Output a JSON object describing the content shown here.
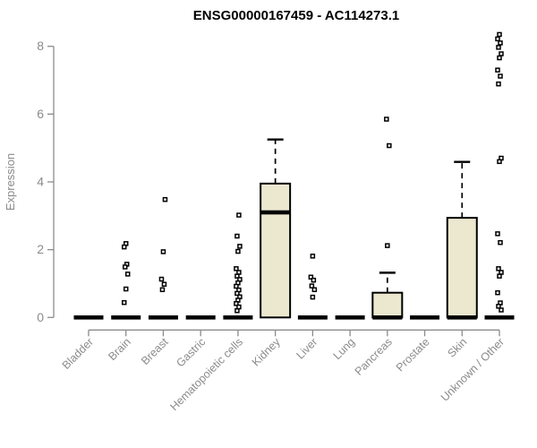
{
  "colors": {
    "box_fill": "#ece7cf",
    "box_stroke": "#000000",
    "median": "#000000",
    "whisker": "#000000",
    "outlier": "#000000",
    "axis": "#8b8b8b",
    "tick_label": "#8b8b8b",
    "title": "#000000"
  },
  "chart_data": {
    "type": "boxplot",
    "title": "ENSG00000167459 - AC114273.1",
    "xlabel": "",
    "ylabel": "Expression",
    "ylim": [
      0,
      8
    ],
    "yticks": [
      0,
      2,
      4,
      6,
      8
    ],
    "grid": false,
    "legend": false,
    "categories": [
      "Bladder",
      "Brain",
      "Breast",
      "Gastric",
      "Hematopoietic cells",
      "Kidney",
      "Liver",
      "Lung",
      "Pancreas",
      "Prostate",
      "Skin",
      "Unknown / Other"
    ],
    "boxes": [
      {
        "category": "Bladder",
        "q1": 0,
        "median": 0,
        "q3": 0,
        "whisker_low": 0,
        "whisker_high": 0,
        "outliers": []
      },
      {
        "category": "Brain",
        "q1": 0,
        "median": 0,
        "q3": 0,
        "whisker_low": 0,
        "whisker_high": 0,
        "outliers": [
          2.18,
          2.08,
          1.57,
          1.49,
          1.28,
          0.84,
          0.44
        ]
      },
      {
        "category": "Breast",
        "q1": 0,
        "median": 0,
        "q3": 0,
        "whisker_low": 0,
        "whisker_high": 0,
        "outliers": [
          3.48,
          1.94,
          1.13,
          0.98,
          0.82
        ]
      },
      {
        "category": "Gastric",
        "q1": 0,
        "median": 0,
        "q3": 0,
        "whisker_low": 0,
        "whisker_high": 0,
        "outliers": []
      },
      {
        "category": "Hematopoietic cells",
        "q1": 0,
        "median": 0,
        "q3": 0,
        "whisker_low": 0,
        "whisker_high": 0,
        "outliers": [
          3.02,
          2.4,
          2.1,
          1.95,
          1.44,
          1.33,
          1.22,
          1.12,
          1.02,
          0.92,
          0.81,
          0.71,
          0.61,
          0.51,
          0.41,
          0.31,
          0.2
        ]
      },
      {
        "category": "Kidney",
        "q1": 0,
        "median": 3.1,
        "q3": 3.95,
        "whisker_low": 0,
        "whisker_high": 5.25,
        "outliers": []
      },
      {
        "category": "Liver",
        "q1": 0,
        "median": 0,
        "q3": 0,
        "whisker_low": 0,
        "whisker_high": 0,
        "outliers": [
          1.81,
          1.19,
          1.1,
          0.93,
          0.82,
          0.6
        ]
      },
      {
        "category": "Lung",
        "q1": 0,
        "median": 0,
        "q3": 0,
        "whisker_low": 0,
        "whisker_high": 0,
        "outliers": []
      },
      {
        "category": "Pancreas",
        "q1": 0,
        "median": 0,
        "q3": 0.73,
        "whisker_low": 0,
        "whisker_high": 1.32,
        "outliers": [
          5.85,
          5.07,
          2.12
        ]
      },
      {
        "category": "Prostate",
        "q1": 0,
        "median": 0,
        "q3": 0,
        "whisker_low": 0,
        "whisker_high": 0,
        "outliers": []
      },
      {
        "category": "Skin",
        "q1": 0,
        "median": 0,
        "q3": 2.94,
        "whisker_low": 0,
        "whisker_high": 4.59,
        "outliers": []
      },
      {
        "category": "Unknown / Other",
        "q1": 0,
        "median": 0,
        "q3": 0,
        "whisker_low": 0,
        "whisker_high": 0,
        "outliers": [
          8.35,
          8.22,
          8.1,
          7.97,
          7.78,
          7.66,
          7.3,
          7.12,
          6.89,
          4.7,
          4.6,
          2.47,
          2.21,
          1.44,
          1.33,
          1.22,
          0.73,
          0.43,
          0.33,
          0.22
        ]
      }
    ]
  }
}
